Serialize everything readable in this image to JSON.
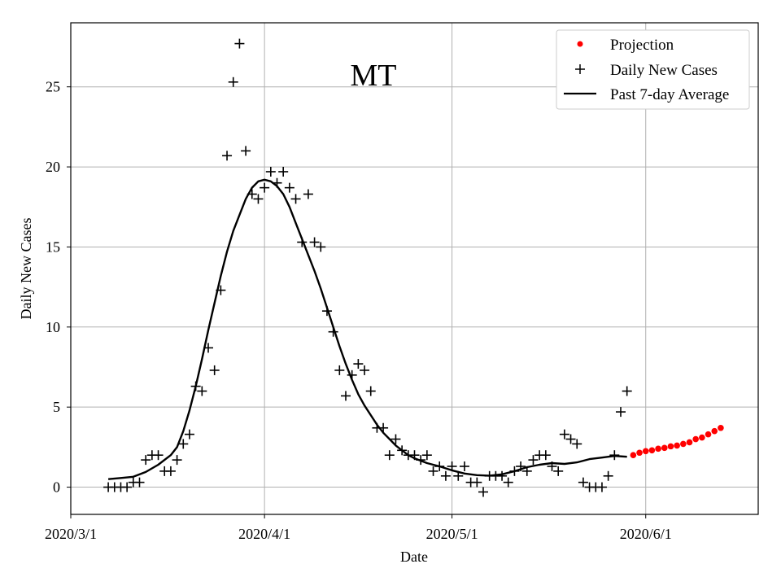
{
  "chart_data": {
    "type": "scatter",
    "title": "MT",
    "xlabel": "Date",
    "ylabel": "Daily New Cases",
    "x_start": "2020-03-01",
    "xlim": [
      "2020-03-01",
      "2020-06-19"
    ],
    "ylim": [
      -1.7,
      29
    ],
    "x_ticks": [
      {
        "label": "2020/3/1",
        "date": "2020-03-01"
      },
      {
        "label": "2020/4/1",
        "date": "2020-04-01"
      },
      {
        "label": "2020/5/1",
        "date": "2020-05-01"
      },
      {
        "label": "2020/6/1",
        "date": "2020-06-01"
      }
    ],
    "y_ticks": [
      0,
      5,
      10,
      15,
      20,
      25
    ],
    "grid": true,
    "legend_position": "top-right",
    "series": [
      {
        "name": "Projection",
        "kind": "dot",
        "color": "#ff0000",
        "points": [
          [
            "2020-05-30",
            2.0
          ],
          [
            "2020-05-31",
            2.15
          ],
          [
            "2020-06-01",
            2.25
          ],
          [
            "2020-06-02",
            2.3
          ],
          [
            "2020-06-03",
            2.4
          ],
          [
            "2020-06-04",
            2.45
          ],
          [
            "2020-06-05",
            2.55
          ],
          [
            "2020-06-06",
            2.6
          ],
          [
            "2020-06-07",
            2.7
          ],
          [
            "2020-06-08",
            2.8
          ],
          [
            "2020-06-09",
            3.0
          ],
          [
            "2020-06-10",
            3.1
          ],
          [
            "2020-06-11",
            3.3
          ],
          [
            "2020-06-12",
            3.5
          ],
          [
            "2020-06-13",
            3.7
          ]
        ]
      },
      {
        "name": "Daily New Cases",
        "kind": "plus",
        "color": "#000000",
        "points": [
          [
            "2020-03-07",
            0
          ],
          [
            "2020-03-08",
            0
          ],
          [
            "2020-03-09",
            0
          ],
          [
            "2020-03-10",
            0
          ],
          [
            "2020-03-11",
            0.3
          ],
          [
            "2020-03-12",
            0.3
          ],
          [
            "2020-03-13",
            1.7
          ],
          [
            "2020-03-14",
            2.0
          ],
          [
            "2020-03-15",
            2.0
          ],
          [
            "2020-03-16",
            1.0
          ],
          [
            "2020-03-17",
            1.0
          ],
          [
            "2020-03-18",
            1.7
          ],
          [
            "2020-03-19",
            2.7
          ],
          [
            "2020-03-20",
            3.3
          ],
          [
            "2020-03-21",
            6.3
          ],
          [
            "2020-03-22",
            6.0
          ],
          [
            "2020-03-23",
            8.7
          ],
          [
            "2020-03-24",
            7.3
          ],
          [
            "2020-03-25",
            12.3
          ],
          [
            "2020-03-26",
            20.7
          ],
          [
            "2020-03-27",
            25.3
          ],
          [
            "2020-03-28",
            27.7
          ],
          [
            "2020-03-29",
            21.0
          ],
          [
            "2020-03-30",
            18.3
          ],
          [
            "2020-03-31",
            18.0
          ],
          [
            "2020-04-01",
            18.7
          ],
          [
            "2020-04-02",
            19.7
          ],
          [
            "2020-04-03",
            19.0
          ],
          [
            "2020-04-04",
            19.7
          ],
          [
            "2020-04-05",
            18.7
          ],
          [
            "2020-04-06",
            18.0
          ],
          [
            "2020-04-07",
            15.3
          ],
          [
            "2020-04-08",
            18.3
          ],
          [
            "2020-04-09",
            15.3
          ],
          [
            "2020-04-10",
            15.0
          ],
          [
            "2020-04-11",
            11.0
          ],
          [
            "2020-04-12",
            9.7
          ],
          [
            "2020-04-13",
            7.3
          ],
          [
            "2020-04-14",
            5.7
          ],
          [
            "2020-04-15",
            7.0
          ],
          [
            "2020-04-16",
            7.7
          ],
          [
            "2020-04-17",
            7.3
          ],
          [
            "2020-04-18",
            6.0
          ],
          [
            "2020-04-19",
            3.7
          ],
          [
            "2020-04-20",
            3.7
          ],
          [
            "2020-04-21",
            2.0
          ],
          [
            "2020-04-22",
            3.0
          ],
          [
            "2020-04-23",
            2.3
          ],
          [
            "2020-04-24",
            2.0
          ],
          [
            "2020-04-25",
            2.0
          ],
          [
            "2020-04-26",
            1.7
          ],
          [
            "2020-04-27",
            2.0
          ],
          [
            "2020-04-28",
            1.0
          ],
          [
            "2020-04-29",
            1.3
          ],
          [
            "2020-04-30",
            0.7
          ],
          [
            "2020-05-01",
            1.3
          ],
          [
            "2020-05-02",
            0.7
          ],
          [
            "2020-05-03",
            1.3
          ],
          [
            "2020-05-04",
            0.3
          ],
          [
            "2020-05-05",
            0.3
          ],
          [
            "2020-05-06",
            -0.3
          ],
          [
            "2020-05-07",
            0.7
          ],
          [
            "2020-05-08",
            0.7
          ],
          [
            "2020-05-09",
            0.7
          ],
          [
            "2020-05-10",
            0.3
          ],
          [
            "2020-05-11",
            1.0
          ],
          [
            "2020-05-12",
            1.3
          ],
          [
            "2020-05-13",
            1.0
          ],
          [
            "2020-05-14",
            1.7
          ],
          [
            "2020-05-15",
            2.0
          ],
          [
            "2020-05-16",
            2.0
          ],
          [
            "2020-05-17",
            1.3
          ],
          [
            "2020-05-18",
            1.0
          ],
          [
            "2020-05-19",
            3.3
          ],
          [
            "2020-05-20",
            3.0
          ],
          [
            "2020-05-21",
            2.7
          ],
          [
            "2020-05-22",
            0.3
          ],
          [
            "2020-05-23",
            0
          ],
          [
            "2020-05-24",
            0
          ],
          [
            "2020-05-25",
            0
          ],
          [
            "2020-05-26",
            0.7
          ],
          [
            "2020-05-27",
            2.0
          ],
          [
            "2020-05-28",
            4.7
          ],
          [
            "2020-05-29",
            6.0
          ]
        ]
      },
      {
        "name": "Past 7-day Average",
        "kind": "line",
        "color": "#000000",
        "points": [
          [
            "2020-03-07",
            0.5
          ],
          [
            "2020-03-09",
            0.57
          ],
          [
            "2020-03-11",
            0.65
          ],
          [
            "2020-03-13",
            0.95
          ],
          [
            "2020-03-15",
            1.4
          ],
          [
            "2020-03-17",
            2.0
          ],
          [
            "2020-03-18",
            2.5
          ],
          [
            "2020-03-19",
            3.5
          ],
          [
            "2020-03-20",
            4.8
          ],
          [
            "2020-03-21",
            6.3
          ],
          [
            "2020-03-22",
            8.0
          ],
          [
            "2020-03-23",
            9.8
          ],
          [
            "2020-03-24",
            11.5
          ],
          [
            "2020-03-25",
            13.2
          ],
          [
            "2020-03-26",
            14.7
          ],
          [
            "2020-03-27",
            16.0
          ],
          [
            "2020-03-28",
            17.0
          ],
          [
            "2020-03-29",
            18.0
          ],
          [
            "2020-03-30",
            18.7
          ],
          [
            "2020-03-31",
            19.1
          ],
          [
            "2020-04-01",
            19.2
          ],
          [
            "2020-04-02",
            19.1
          ],
          [
            "2020-04-03",
            18.8
          ],
          [
            "2020-04-04",
            18.3
          ],
          [
            "2020-04-05",
            17.5
          ],
          [
            "2020-04-06",
            16.5
          ],
          [
            "2020-04-07",
            15.5
          ],
          [
            "2020-04-08",
            14.5
          ],
          [
            "2020-04-09",
            13.5
          ],
          [
            "2020-04-10",
            12.4
          ],
          [
            "2020-04-11",
            11.2
          ],
          [
            "2020-04-12",
            10.0
          ],
          [
            "2020-04-13",
            8.8
          ],
          [
            "2020-04-14",
            7.7
          ],
          [
            "2020-04-15",
            6.7
          ],
          [
            "2020-04-16",
            5.8
          ],
          [
            "2020-04-17",
            5.1
          ],
          [
            "2020-04-18",
            4.5
          ],
          [
            "2020-04-19",
            3.9
          ],
          [
            "2020-04-20",
            3.4
          ],
          [
            "2020-04-21",
            3.0
          ],
          [
            "2020-04-22",
            2.6
          ],
          [
            "2020-04-23",
            2.3
          ],
          [
            "2020-04-24",
            2.0
          ],
          [
            "2020-04-25",
            1.8
          ],
          [
            "2020-04-27",
            1.5
          ],
          [
            "2020-04-29",
            1.3
          ],
          [
            "2020-05-01",
            1.05
          ],
          [
            "2020-05-03",
            0.85
          ],
          [
            "2020-05-05",
            0.75
          ],
          [
            "2020-05-07",
            0.72
          ],
          [
            "2020-05-09",
            0.8
          ],
          [
            "2020-05-11",
            1.0
          ],
          [
            "2020-05-13",
            1.25
          ],
          [
            "2020-05-15",
            1.4
          ],
          [
            "2020-05-17",
            1.5
          ],
          [
            "2020-05-19",
            1.45
          ],
          [
            "2020-05-21",
            1.55
          ],
          [
            "2020-05-23",
            1.75
          ],
          [
            "2020-05-25",
            1.85
          ],
          [
            "2020-05-27",
            1.95
          ],
          [
            "2020-05-29",
            1.9
          ]
        ]
      }
    ]
  }
}
